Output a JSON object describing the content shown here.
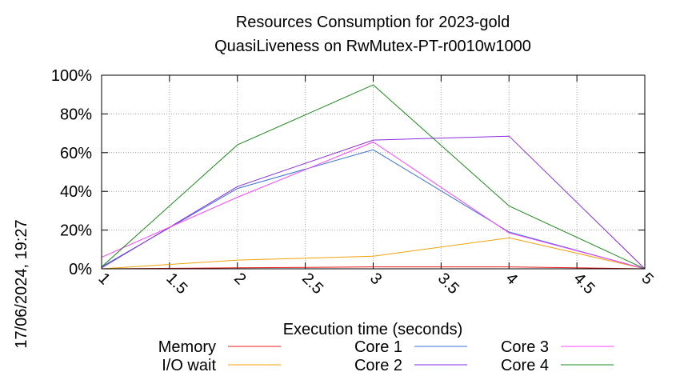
{
  "chart_data": {
    "type": "line",
    "title_line1": "Resources Consumption for 2023-gold",
    "title_line2": "QuasiLiveness on RwMutex-PT-r0010w1000",
    "xlabel": "Execution time (seconds)",
    "timestamp": "17/06/2024, 19:27",
    "x": [
      1,
      2,
      3,
      4,
      5
    ],
    "xlim": [
      1,
      5
    ],
    "ylim": [
      0,
      100
    ],
    "x_ticks": [
      "1",
      "1.5",
      "2",
      "2.5",
      "3",
      "3.5",
      "4",
      "4.5",
      "5"
    ],
    "y_ticks": [
      "0%",
      "20%",
      "40%",
      "60%",
      "80%",
      "100%"
    ],
    "grid": true,
    "legend_position": "bottom",
    "series": [
      {
        "name": "Memory",
        "color": "#e41a1c",
        "values": [
          0,
          0.5,
          1,
          1,
          0
        ]
      },
      {
        "name": "I/O wait",
        "color": "#f0a30a",
        "values": [
          0,
          4.5,
          6.5,
          16,
          0
        ]
      },
      {
        "name": "Core 1",
        "color": "#3a6fd8",
        "values": [
          1,
          41.5,
          61.5,
          19,
          0
        ]
      },
      {
        "name": "Core 2",
        "color": "#8a2be2",
        "values": [
          0.5,
          42.5,
          66.5,
          68.5,
          0
        ]
      },
      {
        "name": "Core 3",
        "color": "#ff44ff",
        "values": [
          6,
          37,
          65.5,
          18.5,
          0
        ]
      },
      {
        "name": "Core 4",
        "color": "#1e8a1e",
        "values": [
          1,
          64,
          95,
          32.5,
          0
        ]
      }
    ]
  }
}
